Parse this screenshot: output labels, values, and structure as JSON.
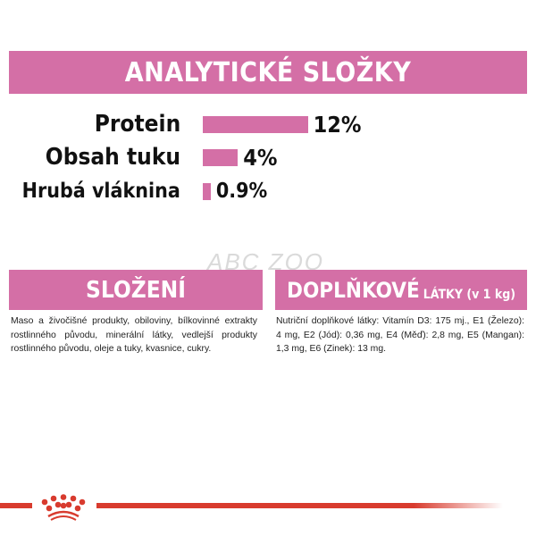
{
  "analytical": {
    "title": "ANALYTICKÉ SLOŽKY",
    "items": [
      {
        "label": "Protein",
        "value": "12%",
        "percent": 12
      },
      {
        "label": "Obsah tuku",
        "value": "4%",
        "percent": 4
      },
      {
        "label": "Hrubá vláknina",
        "value": "0.9%",
        "percent": 0.9
      }
    ]
  },
  "watermark": "ABC ZOO",
  "composition": {
    "title": "SLOŽENÍ",
    "text": "Maso a živočišné produkty, obiloviny, bílkovinné extrakty rostlinného původu, minerální látky, vedlejší produkty rostlinného původu, oleje a tuky, kvasnice, cukry."
  },
  "additives": {
    "title": "DOPLŇKOVÉ",
    "title_small": "LÁTKY (v 1 kg)",
    "text": "Nutriční doplňkové látky: Vitamín D3: 175 mj., E1 (Železo): 4 mg, E2 (Jód): 0,36 mg, E4 (Měď): 2,8 mg, E5 (Mangan): 1,3 mg, E6 (Zinek): 13 mg."
  },
  "colors": {
    "accent": "#d46fa6",
    "brand_red": "#d83b2e"
  },
  "logo": {
    "icon": "royal-canin-crown-icon"
  }
}
